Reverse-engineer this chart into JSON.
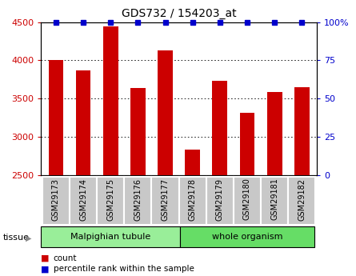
{
  "title": "GDS732 / 154203_at",
  "samples": [
    "GSM29173",
    "GSM29174",
    "GSM29175",
    "GSM29176",
    "GSM29177",
    "GSM29178",
    "GSM29179",
    "GSM29180",
    "GSM29181",
    "GSM29182"
  ],
  "counts": [
    4000,
    3870,
    4440,
    3640,
    4130,
    2830,
    3730,
    3320,
    3590,
    3650
  ],
  "percentiles": [
    100,
    100,
    100,
    100,
    100,
    100,
    100,
    100,
    100,
    100
  ],
  "ylim_left": [
    2500,
    4500
  ],
  "ylim_right": [
    0,
    100
  ],
  "yticks_left": [
    2500,
    3000,
    3500,
    4000,
    4500
  ],
  "yticks_right": [
    0,
    25,
    50,
    75,
    100
  ],
  "groups": [
    {
      "label": "Malpighian tubule",
      "start": 0,
      "end": 5,
      "color": "#99EE99"
    },
    {
      "label": "whole organism",
      "start": 5,
      "end": 10,
      "color": "#66DD66"
    }
  ],
  "tissue_label": "tissue",
  "bar_color": "#CC0000",
  "percentile_color": "#0000CC",
  "tick_bg_color": "#C8C8C8",
  "legend_count_color": "#CC0000",
  "legend_pct_color": "#0000CC",
  "legend_count_label": "count",
  "legend_pct_label": "percentile rank within the sample",
  "left_axis_color": "#CC0000",
  "right_axis_color": "#0000CC",
  "bar_width": 0.55
}
